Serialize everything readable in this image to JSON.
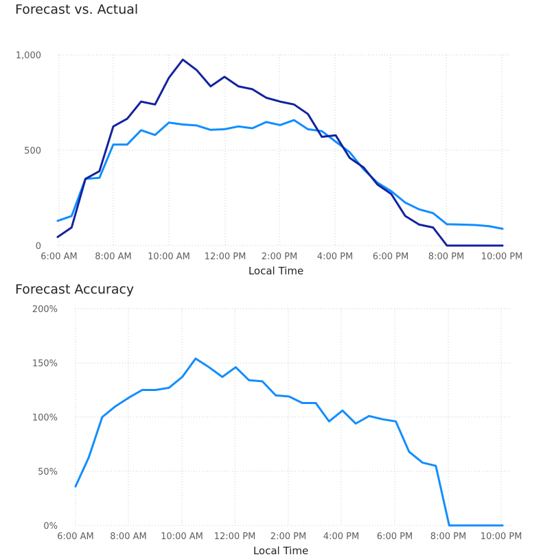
{
  "chart_data": [
    {
      "type": "line",
      "title": "Forecast vs. Actual",
      "xlabel": "Local Time",
      "ylabel": "",
      "x_unit": "hours",
      "xlim": [
        6,
        22
      ],
      "ylim": [
        0,
        1000
      ],
      "x_ticks": [
        {
          "value": 6,
          "label": "6:00 AM"
        },
        {
          "value": 8,
          "label": "8:00 AM"
        },
        {
          "value": 10,
          "label": "10:00 AM"
        },
        {
          "value": 12,
          "label": "12:00 PM"
        },
        {
          "value": 14,
          "label": "2:00 PM"
        },
        {
          "value": 16,
          "label": "4:00 PM"
        },
        {
          "value": 18,
          "label": "6:00 PM"
        },
        {
          "value": 20,
          "label": "8:00 PM"
        },
        {
          "value": 22,
          "label": "10:00 PM"
        }
      ],
      "y_ticks": [
        {
          "value": 0,
          "label": "0"
        },
        {
          "value": 500,
          "label": "500"
        },
        {
          "value": 1000,
          "label": "1,000"
        }
      ],
      "grid": true,
      "legend": "none",
      "x": [
        6,
        6.5,
        7,
        7.5,
        8,
        8.5,
        9,
        9.5,
        10,
        10.5,
        11,
        11.5,
        12,
        12.5,
        13,
        13.5,
        14,
        14.5,
        15,
        15.5,
        16,
        16.5,
        17,
        17.5,
        18,
        18.5,
        19,
        19.5,
        20,
        20.5,
        21,
        21.5,
        22
      ],
      "series": [
        {
          "color": "#118DFF",
          "values": [
            130,
            155,
            350,
            355,
            530,
            530,
            605,
            580,
            645,
            635,
            630,
            607,
            610,
            625,
            615,
            648,
            632,
            658,
            610,
            600,
            545,
            490,
            400,
            330,
            285,
            225,
            190,
            170,
            112,
            110,
            108,
            102,
            88
          ]
        },
        {
          "color": "#12239E",
          "values": [
            45,
            95,
            350,
            390,
            625,
            665,
            755,
            740,
            880,
            975,
            920,
            835,
            885,
            835,
            820,
            775,
            755,
            740,
            690,
            570,
            578,
            460,
            410,
            320,
            270,
            155,
            110,
            95,
            0,
            0,
            0,
            0,
            0
          ]
        }
      ]
    },
    {
      "type": "line",
      "title": "Forecast Accuracy",
      "xlabel": "Local Time",
      "ylabel": "",
      "x_unit": "hours",
      "xlim": [
        6,
        22
      ],
      "ylim": [
        0,
        200
      ],
      "y_unit": "%",
      "x_ticks": [
        {
          "value": 6,
          "label": "6:00 AM"
        },
        {
          "value": 8,
          "label": "8:00 AM"
        },
        {
          "value": 10,
          "label": "10:00 AM"
        },
        {
          "value": 12,
          "label": "12:00 PM"
        },
        {
          "value": 14,
          "label": "2:00 PM"
        },
        {
          "value": 16,
          "label": "4:00 PM"
        },
        {
          "value": 18,
          "label": "6:00 PM"
        },
        {
          "value": 20,
          "label": "8:00 PM"
        },
        {
          "value": 22,
          "label": "10:00 PM"
        }
      ],
      "y_ticks": [
        {
          "value": 0,
          "label": "0%"
        },
        {
          "value": 50,
          "label": "50%"
        },
        {
          "value": 100,
          "label": "100%"
        },
        {
          "value": 150,
          "label": "150%"
        },
        {
          "value": 200,
          "label": "200%"
        }
      ],
      "grid": true,
      "legend": "none",
      "x": [
        6,
        6.5,
        7,
        7.5,
        8,
        8.5,
        9,
        9.5,
        10,
        10.5,
        11,
        11.5,
        12,
        12.5,
        13,
        13.5,
        14,
        14.5,
        15,
        15.5,
        16,
        16.5,
        17,
        17.5,
        18,
        18.5,
        19,
        19.5,
        20,
        20.5,
        21,
        21.5,
        22
      ],
      "series": [
        {
          "color": "#118DFF",
          "values": [
            36,
            63,
            100,
            110,
            118,
            125,
            125,
            127,
            137,
            154,
            146,
            137,
            146,
            134,
            133,
            120,
            119,
            113,
            113,
            96,
            106,
            94,
            101,
            98,
            96,
            68,
            58,
            55,
            0,
            0,
            0,
            0,
            0
          ]
        }
      ]
    }
  ]
}
